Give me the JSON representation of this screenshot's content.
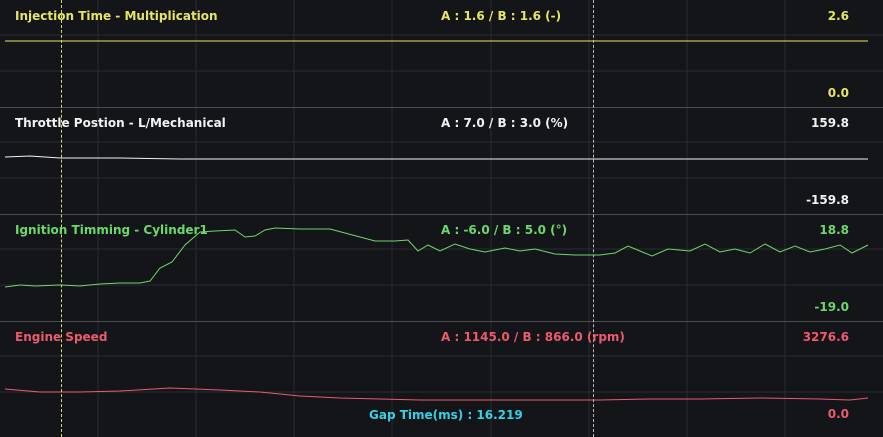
{
  "colors": {
    "background": "#141518",
    "grid": "#2a2c31",
    "separator": "#4a4c52",
    "cursor_a": "#d9d96a",
    "cursor_b": "#b8b8b8",
    "gap_time": "#36d1e6"
  },
  "channels": [
    {
      "title": "Injection Time - Multiplication",
      "cursor_values": "A : 1.6 / B : 1.6 (-)",
      "max": "2.6",
      "min": "0.0",
      "color": "#e6e664"
    },
    {
      "title": "Throttle Postion - L/Mechanical",
      "cursor_values": "A : 7.0 / B : 3.0 (%)",
      "max": "159.8",
      "min": "-159.8",
      "color": "#f2f2f2"
    },
    {
      "title": "Ignition Timming - Cylinder1",
      "cursor_values": "A : -6.0 / B : 5.0 (°)",
      "max": "18.8",
      "min": "-19.0",
      "color": "#6cd86c"
    },
    {
      "title": "Engine Speed",
      "cursor_values": "A : 1145.0 / B : 866.0 (rpm)",
      "max": "3276.6",
      "min": "0.0",
      "color": "#ec5a6e"
    }
  ],
  "gap_time": "Gap Time(ms) : 16.219"
}
